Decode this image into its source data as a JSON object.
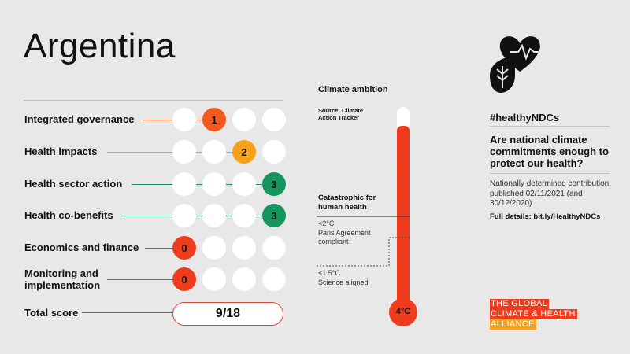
{
  "country": "Argentina",
  "rows": [
    {
      "label": "Integrated governance",
      "score": "1",
      "filled": 2,
      "color": "#f25b1d"
    },
    {
      "label": "Health impacts",
      "score": "2",
      "filled": 3,
      "color": "#f5a11b"
    },
    {
      "label": "Health sector action",
      "score": "3",
      "filled": 4,
      "color": "#16955e"
    },
    {
      "label": "Health co-benefits",
      "score": "3",
      "filled": 4,
      "color": "#16955e"
    },
    {
      "label": "Economics and finance",
      "score": "0",
      "filled": 1,
      "color": "#f03c1e"
    },
    {
      "label": "Monitoring and implementation",
      "score": "0",
      "filled": 1,
      "color": "#f03c1e"
    }
  ],
  "total": {
    "label": "Total score",
    "value": "9/18",
    "color": "#e0462d"
  },
  "ambition": {
    "title": "Climate ambition",
    "source": "Source: Climate Action Tracker",
    "catastrophic": "Catastrophic for human health",
    "paris": [
      "<2°C",
      "Paris Agreement",
      "compliant"
    ],
    "science": [
      "<1.5°C",
      "Science aligned"
    ],
    "temperature": "4°C",
    "thermo_color": "#f03c1e"
  },
  "right": {
    "hashtag": "#healthyNDCs",
    "question": "Are national climate commitments enough to protect our health?",
    "ndc": "Nationally determined contribution, published 02/11/2021 (and 30/12/2020)",
    "details": "Full details: bit.ly/HealthyNDCs",
    "icon": "heart-leaf-icon"
  },
  "logo": [
    "THE GLOBAL",
    "CLIMATE & HEALTH",
    "ALLIANCE"
  ]
}
